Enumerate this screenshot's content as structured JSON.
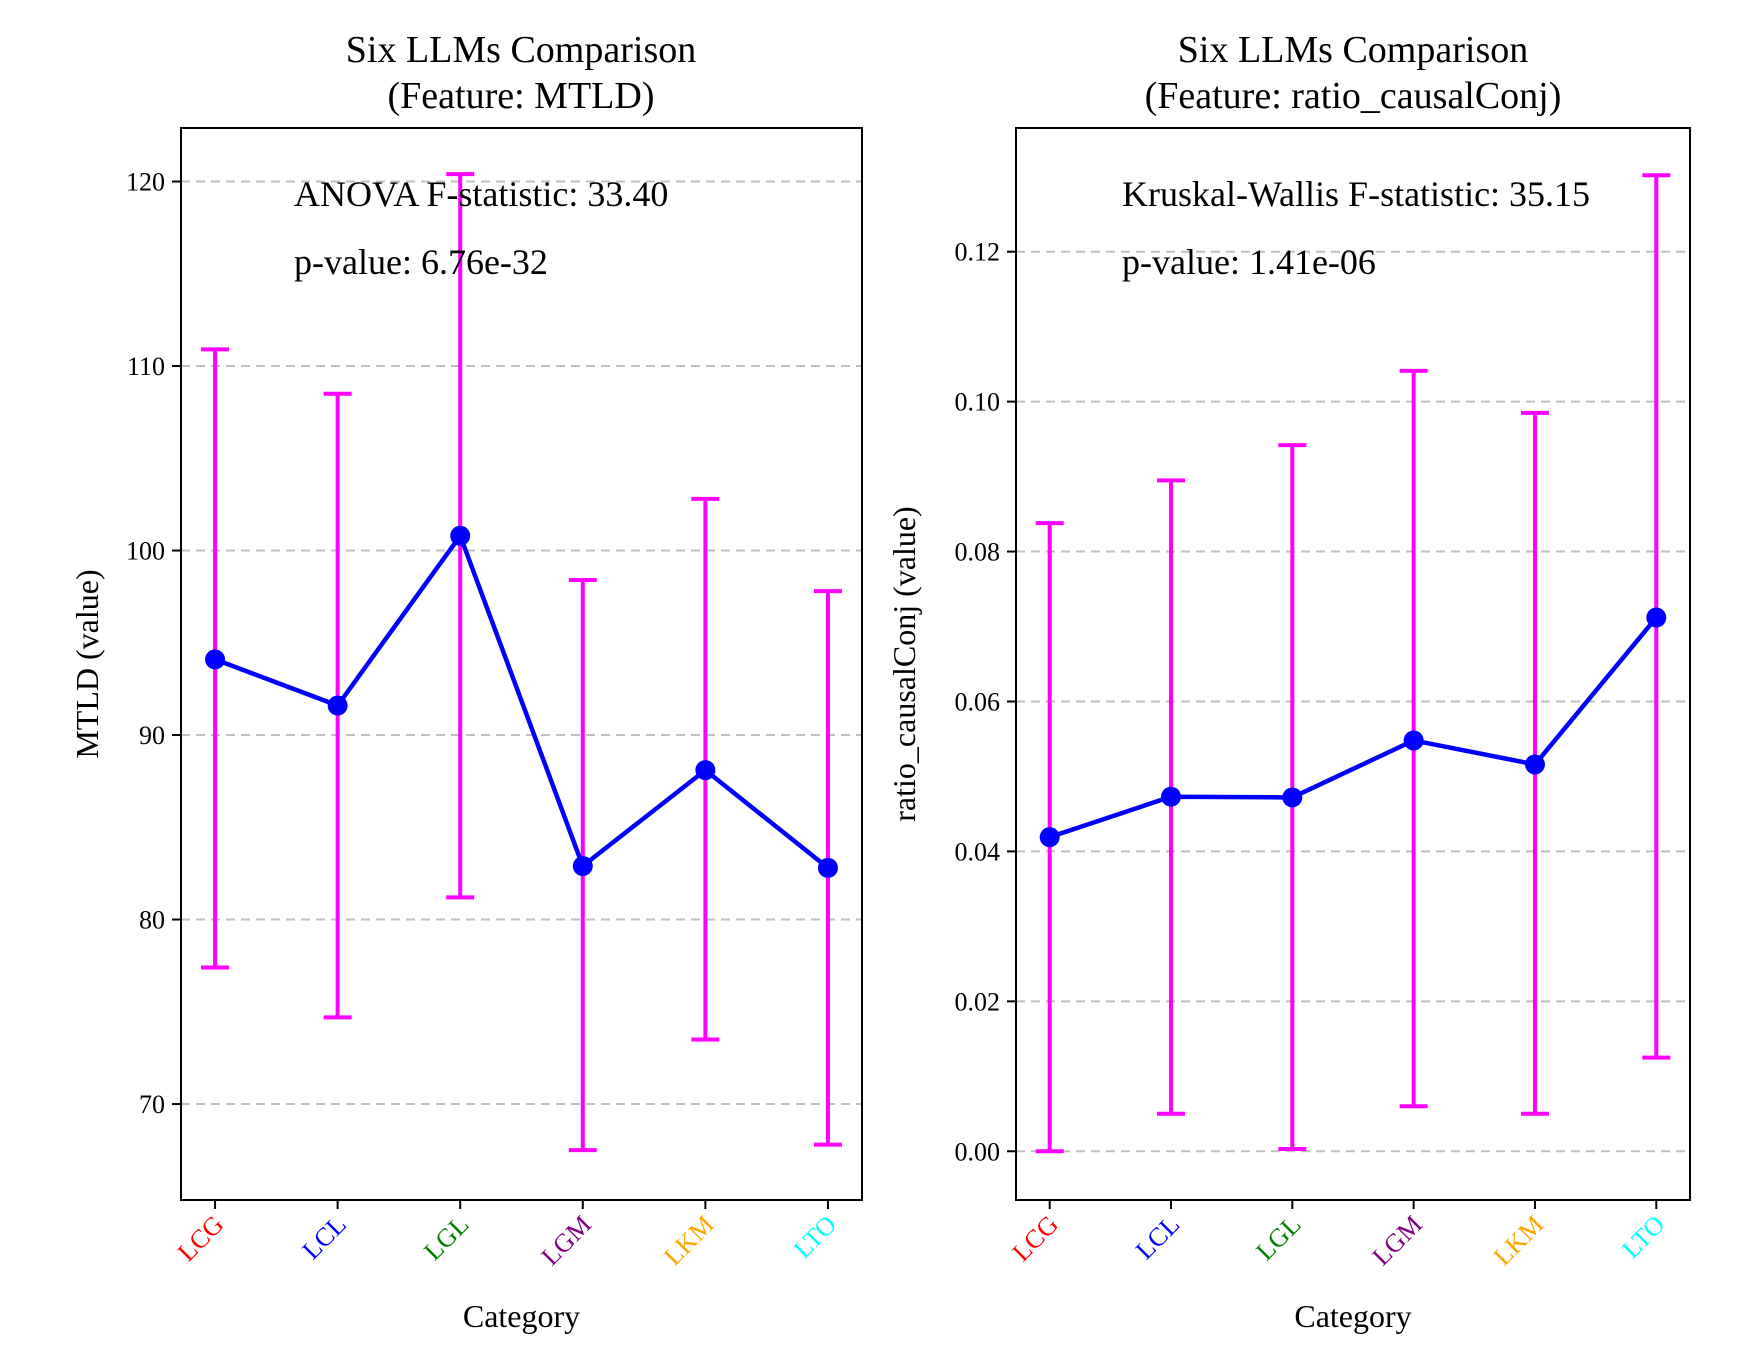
{
  "chart_data": [
    {
      "type": "line",
      "title_line1": "Six LLMs Comparison",
      "title_line2": "(Feature: MTLD)",
      "xlabel": "Category",
      "ylabel": "MTLD (value)",
      "categories": [
        "LCG",
        "LCL",
        "LGL",
        "LGM",
        "LKM",
        "LTO"
      ],
      "category_colors": [
        "#ff0000",
        "#0000ff",
        "#008000",
        "#800080",
        "#ffa500",
        "#00ffff"
      ],
      "values": [
        94.1,
        91.6,
        100.8,
        82.9,
        88.1,
        82.8
      ],
      "error_low": [
        77.4,
        74.7,
        81.2,
        67.5,
        73.5,
        67.8
      ],
      "error_high": [
        110.9,
        108.5,
        120.4,
        98.4,
        102.8,
        97.8
      ],
      "ylim": [
        64.8,
        122.9
      ],
      "yticks": [
        70,
        80,
        90,
        100,
        110,
        120
      ],
      "ytick_labels": [
        "70",
        "80",
        "90",
        "100",
        "110",
        "120"
      ],
      "grid": "y dashed",
      "line_color": "#0000ff",
      "error_color": "#ff00ff",
      "annotation_stat": "ANOVA F-statistic: 33.40",
      "annotation_p": "p-value: 6.76e-32"
    },
    {
      "type": "line",
      "title_line1": "Six LLMs Comparison",
      "title_line2": "(Feature: ratio_causalConj)",
      "xlabel": "Category",
      "ylabel": "ratio_causalConj (value)",
      "categories": [
        "LCG",
        "LCL",
        "LGL",
        "LGM",
        "LKM",
        "LTO"
      ],
      "category_colors": [
        "#ff0000",
        "#0000ff",
        "#008000",
        "#800080",
        "#ffa500",
        "#00ffff"
      ],
      "values": [
        0.0419,
        0.0473,
        0.0472,
        0.0548,
        0.0516,
        0.0712
      ],
      "error_low": [
        0.0,
        0.005,
        0.0003,
        0.006,
        0.005,
        0.0125
      ],
      "error_high": [
        0.0838,
        0.0895,
        0.0942,
        0.1041,
        0.0985,
        0.1302
      ],
      "ylim": [
        -0.0065,
        0.1365
      ],
      "yticks": [
        0.0,
        0.02,
        0.04,
        0.06,
        0.08,
        0.1,
        0.12
      ],
      "ytick_labels": [
        "0.00",
        "0.02",
        "0.04",
        "0.06",
        "0.08",
        "0.10",
        "0.12"
      ],
      "grid": "y dashed",
      "line_color": "#0000ff",
      "error_color": "#ff00ff",
      "annotation_stat": "Kruskal-Wallis F-statistic: 35.15",
      "annotation_p": "p-value: 1.41e-06"
    }
  ]
}
